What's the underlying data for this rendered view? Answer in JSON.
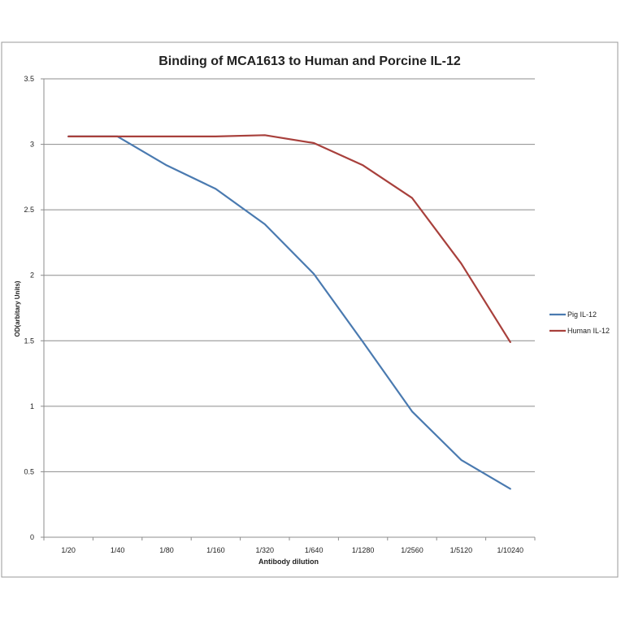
{
  "chart_data": {
    "type": "line",
    "title": "Binding of MCA1613 to Human and Porcine IL-12",
    "xlabel": "Antibody dilution",
    "ylabel": "OD(arbitary Units)",
    "categories": [
      "1/20",
      "1/40",
      "1/80",
      "1/160",
      "1/320",
      "1/640",
      "1/1280",
      "1/2560",
      "1/5120",
      "1/10240"
    ],
    "ylim": [
      0,
      3.5
    ],
    "yticks": [
      "0",
      "0.5",
      "1",
      "1.5",
      "2",
      "2.5",
      "3",
      "3.5"
    ],
    "grid": true,
    "legend_position": "right",
    "series": [
      {
        "name": "Pig IL-12",
        "color": "#4a7ab0",
        "values": [
          3.06,
          3.06,
          2.84,
          2.66,
          2.39,
          2.01,
          1.49,
          0.96,
          0.59,
          0.37
        ]
      },
      {
        "name": "Human IL-12",
        "color": "#a8403c",
        "values": [
          3.06,
          3.06,
          3.06,
          3.06,
          3.07,
          3.01,
          2.84,
          2.59,
          2.09,
          1.49
        ]
      }
    ]
  }
}
